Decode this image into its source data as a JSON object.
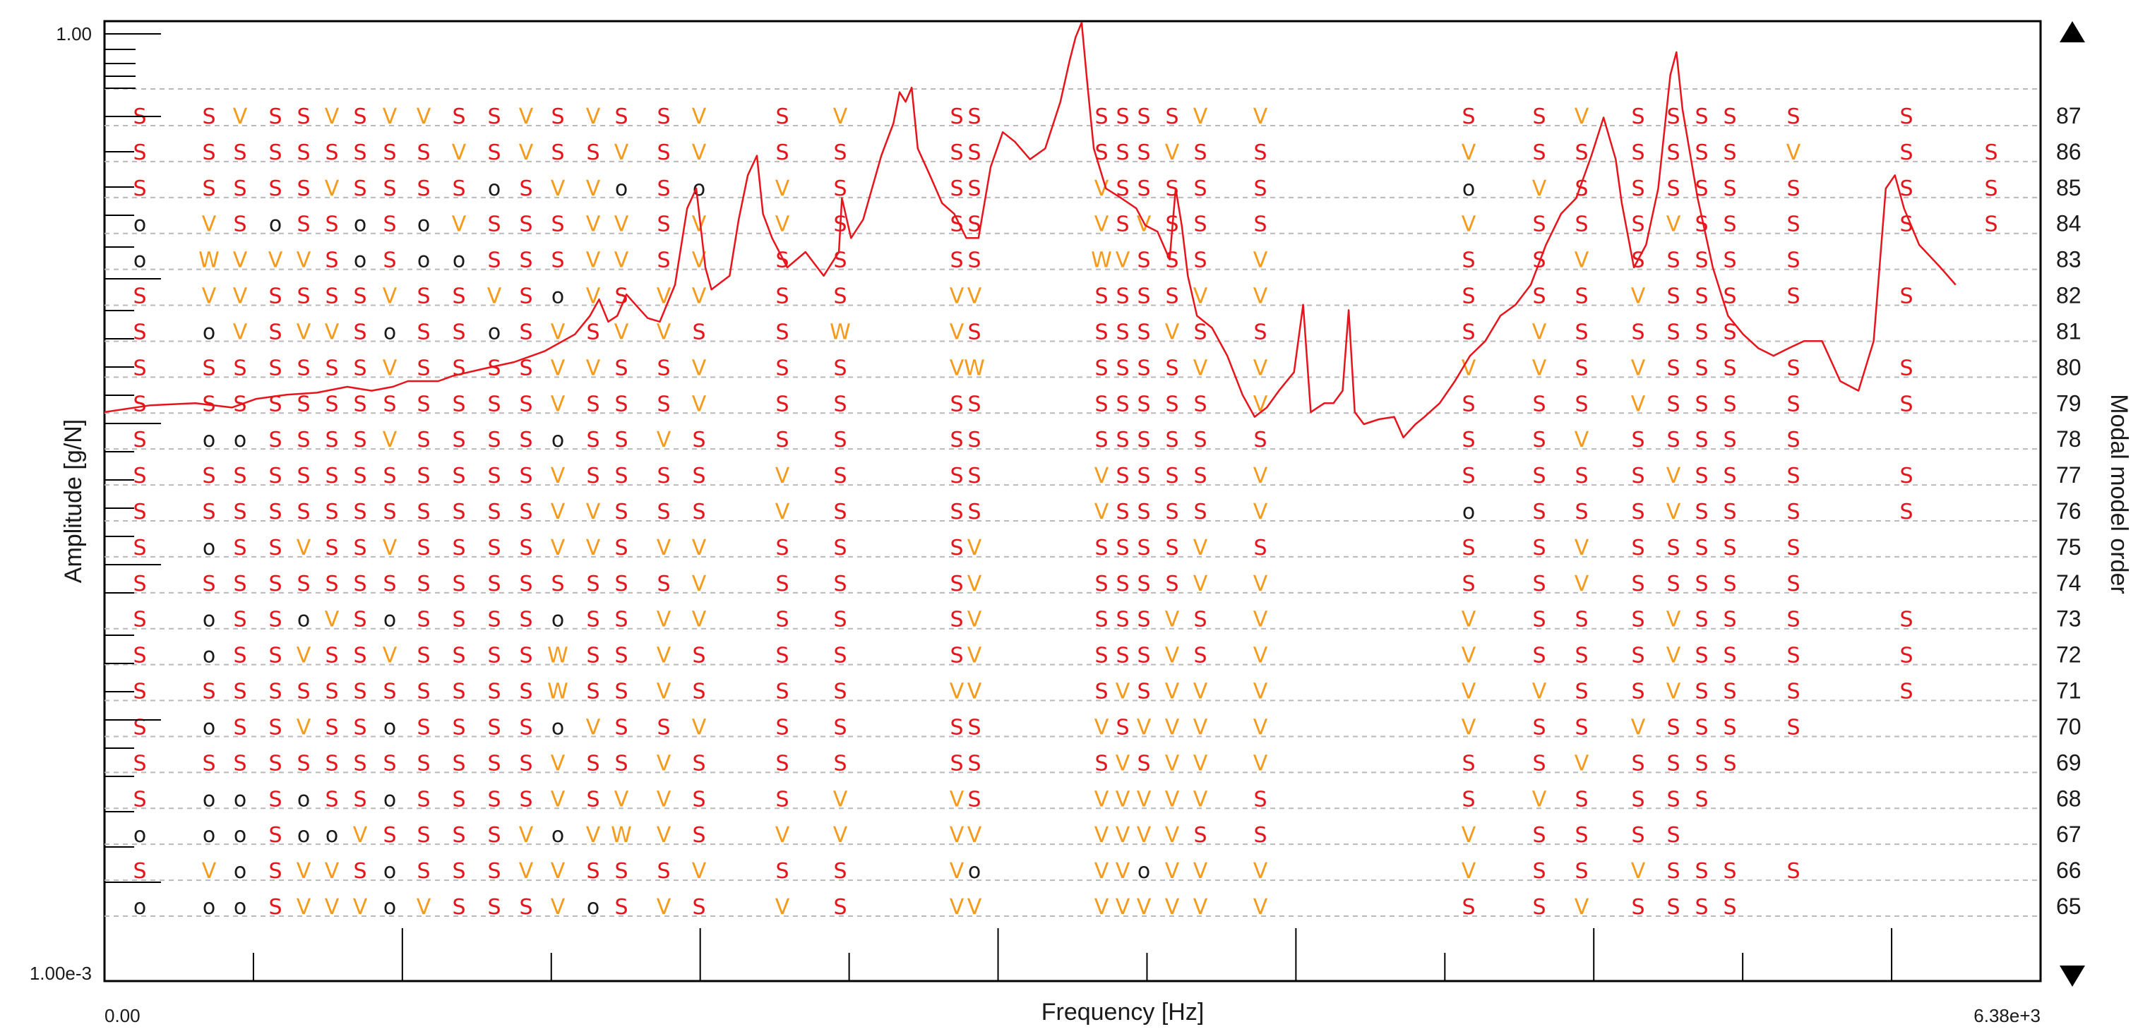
{
  "chart_data": {
    "type": "line",
    "title": "",
    "xlabel": "Frequency [Hz]",
    "ylabel": "Amplitude  [g/N]",
    "y2label": "Modal model order",
    "xlim": [
      0,
      6380
    ],
    "ylim": [
      0.001,
      1.0
    ],
    "y_scale": "log",
    "x_tick_labels": {
      "min": "0.00",
      "max": "6.38e+3"
    },
    "y_tick_labels": {
      "min": "1.00e-3",
      "max": "1.00"
    },
    "orders": [
      65,
      66,
      67,
      68,
      69,
      70,
      71,
      72,
      73,
      74,
      75,
      76,
      77,
      78,
      79,
      80,
      81,
      82,
      83,
      84,
      85,
      86,
      87
    ],
    "grid": true,
    "legend": "none",
    "colors": {
      "line": "#e8141c",
      "S": "#e8141c",
      "V": "#f59a1b",
      "O": "#1a1a1a"
    },
    "series": [
      {
        "values": [
          [
            0,
            0.06
          ],
          [
            150,
            0.063
          ],
          [
            300,
            0.064
          ],
          [
            420,
            0.062
          ],
          [
            500,
            0.066
          ],
          [
            600,
            0.068
          ],
          [
            700,
            0.069
          ],
          [
            800,
            0.072
          ],
          [
            880,
            0.07
          ],
          [
            950,
            0.072
          ],
          [
            1000,
            0.075
          ],
          [
            1100,
            0.075
          ],
          [
            1150,
            0.078
          ],
          [
            1250,
            0.082
          ],
          [
            1350,
            0.086
          ],
          [
            1450,
            0.093
          ],
          [
            1550,
            0.105
          ],
          [
            1600,
            0.12
          ],
          [
            1630,
            0.135
          ],
          [
            1660,
            0.115
          ],
          [
            1690,
            0.12
          ],
          [
            1720,
            0.14
          ],
          [
            1750,
            0.13
          ],
          [
            1790,
            0.118
          ],
          [
            1830,
            0.115
          ],
          [
            1880,
            0.15
          ],
          [
            1920,
            0.26
          ],
          [
            1950,
            0.3
          ],
          [
            1980,
            0.17
          ],
          [
            2000,
            0.145
          ],
          [
            2060,
            0.16
          ],
          [
            2090,
            0.24
          ],
          [
            2120,
            0.33
          ],
          [
            2150,
            0.38
          ],
          [
            2170,
            0.25
          ],
          [
            2200,
            0.21
          ],
          [
            2250,
            0.17
          ],
          [
            2310,
            0.19
          ],
          [
            2370,
            0.16
          ],
          [
            2420,
            0.19
          ],
          [
            2430,
            0.28
          ],
          [
            2460,
            0.21
          ],
          [
            2500,
            0.24
          ],
          [
            2560,
            0.38
          ],
          [
            2600,
            0.48
          ],
          [
            2620,
            0.6
          ],
          [
            2640,
            0.56
          ],
          [
            2660,
            0.62
          ],
          [
            2680,
            0.4
          ],
          [
            2720,
            0.33
          ],
          [
            2760,
            0.27
          ],
          [
            2800,
            0.25
          ],
          [
            2840,
            0.21
          ],
          [
            2880,
            0.21
          ],
          [
            2920,
            0.35
          ],
          [
            2960,
            0.45
          ],
          [
            3000,
            0.42
          ],
          [
            3050,
            0.37
          ],
          [
            3100,
            0.4
          ],
          [
            3150,
            0.56
          ],
          [
            3180,
            0.75
          ],
          [
            3200,
            0.89
          ],
          [
            3220,
            0.99
          ],
          [
            3240,
            0.62
          ],
          [
            3260,
            0.4
          ],
          [
            3300,
            0.3
          ],
          [
            3350,
            0.28
          ],
          [
            3400,
            0.26
          ],
          [
            3430,
            0.23
          ],
          [
            3470,
            0.22
          ],
          [
            3510,
            0.18
          ],
          [
            3530,
            0.3
          ],
          [
            3550,
            0.23
          ],
          [
            3570,
            0.16
          ],
          [
            3600,
            0.12
          ],
          [
            3650,
            0.11
          ],
          [
            3700,
            0.09
          ],
          [
            3750,
            0.068
          ],
          [
            3790,
            0.058
          ],
          [
            3830,
            0.062
          ],
          [
            3870,
            0.07
          ],
          [
            3920,
            0.08
          ],
          [
            3950,
            0.13
          ],
          [
            3975,
            0.06
          ],
          [
            4020,
            0.064
          ],
          [
            4050,
            0.064
          ],
          [
            4080,
            0.07
          ],
          [
            4100,
            0.125
          ],
          [
            4120,
            0.06
          ],
          [
            4150,
            0.055
          ],
          [
            4200,
            0.057
          ],
          [
            4250,
            0.058
          ],
          [
            4280,
            0.05
          ],
          [
            4320,
            0.055
          ],
          [
            4350,
            0.058
          ],
          [
            4400,
            0.064
          ],
          [
            4450,
            0.075
          ],
          [
            4500,
            0.09
          ],
          [
            4550,
            0.1
          ],
          [
            4600,
            0.12
          ],
          [
            4650,
            0.13
          ],
          [
            4700,
            0.15
          ],
          [
            4750,
            0.2
          ],
          [
            4800,
            0.25
          ],
          [
            4850,
            0.28
          ],
          [
            4900,
            0.38
          ],
          [
            4940,
            0.5
          ],
          [
            4980,
            0.37
          ],
          [
            5000,
            0.27
          ],
          [
            5040,
            0.17
          ],
          [
            5080,
            0.2
          ],
          [
            5120,
            0.3
          ],
          [
            5160,
            0.68
          ],
          [
            5180,
            0.8
          ],
          [
            5200,
            0.53
          ],
          [
            5250,
            0.28
          ],
          [
            5300,
            0.17
          ],
          [
            5350,
            0.12
          ],
          [
            5400,
            0.105
          ],
          [
            5450,
            0.095
          ],
          [
            5500,
            0.09
          ],
          [
            5550,
            0.095
          ],
          [
            5600,
            0.1
          ],
          [
            5660,
            0.1
          ],
          [
            5720,
            0.075
          ],
          [
            5780,
            0.07
          ],
          [
            5830,
            0.1
          ],
          [
            5870,
            0.3
          ],
          [
            5900,
            0.33
          ],
          [
            5930,
            0.26
          ],
          [
            5980,
            0.2
          ],
          [
            6050,
            0.17
          ],
          [
            6100,
            0.15
          ]
        ]
      }
    ],
    "stabilization_markers": [
      {
        "order": 87,
        "row": "S S V S S V S V V S S V S V S S V S V S S S S S S V V S S V S S S S S S"
      },
      {
        "order": 86,
        "row": "S S S S S S S S S V S V S S V S V S S S S S S S V S S V S S S S S S V S S S S S"
      },
      {
        "order": 85,
        "row": "S S S S S V S S S S O S V V O S O V S S S V S S S S S O V S S S S S S S S S"
      },
      {
        "order": 84,
        "row": "O V S O S S O S O V S S S V V S V V S S S V S V S S S V S S S V S S S S S"
      },
      {
        "order": 83,
        "row": "O W V V V S O S O O S S S V V S V S S S S W V S S S V S S V S S S S S"
      },
      {
        "order": 82,
        "row": "S V V S S S S V S S V S O V S V V S S V V S S S S V V S S S V S S S S S"
      },
      {
        "order": 81,
        "row": "S O V S V V S O S S O S V S V V S S W V S S S S V S S S V S S S S S"
      },
      {
        "order": 80,
        "row": "S S S S S S S V S S S S V V S S V S S V W S S S S V V V V S V S S S S S"
      },
      {
        "order": 79,
        "row": "S S S S S S S S S S S S V S S S V S S S S S S S S S V S S S V S S S S S"
      },
      {
        "order": 78,
        "row": "S O O S S S S V S S S S O S S V S S S S S S S S S S S S S V S S S S S"
      },
      {
        "order": 77,
        "row": "S S S S S S S S S S S S V S S S S V S S S V S S S S V S S S S V S S S S"
      },
      {
        "order": 76,
        "row": "S S S S S S S S S S S S V V S S S V S S S V S S S S V O S S S V S S S S"
      },
      {
        "order": 75,
        "row": "S O S S V S S V S S S S V V S V V S S S V S S S S V S S S V S S S S S"
      },
      {
        "order": 74,
        "row": "S S S S S S S S S S S S S S S S V S S S V S S S S V V S S V S S S S S"
      },
      {
        "order": 73,
        "row": "S O S S O V S O S S S S O S S V V S S S V S S S V S V V S S S V S S S S"
      },
      {
        "order": 72,
        "row": "S O S S V S S V S S S S W S S V S S S S V S S S V S V V S S S V S S S S"
      },
      {
        "order": 71,
        "row": "S S S S S S S S S S S S W S S V S S S V V S V S V V V V V S S V S S S S"
      },
      {
        "order": 70,
        "row": "S O S S V S S O S S S S O V S S V S S S S V S V V V V V S S V S S S S"
      },
      {
        "order": 69,
        "row": "S S S S S S S S S S S S V S S V S S S S S S V S V V V S S V S S S S"
      },
      {
        "order": 68,
        "row": "S O O S O S S O S S S S V S V V S S V V S V V V V V S S V S S S S"
      },
      {
        "order": 67,
        "row": "O O O S O O V S S S S V O V W V S V V V V V V V V S S V S S S S"
      },
      {
        "order": 66,
        "row": "S V O S V V S O S S S V V S S S V S S V O V V O V V V V S S V S S S S"
      },
      {
        "order": 65,
        "row": "O O O S V V V O V S S S V O S V S V S V V V V V V V V S S V S S S S"
      }
    ]
  }
}
